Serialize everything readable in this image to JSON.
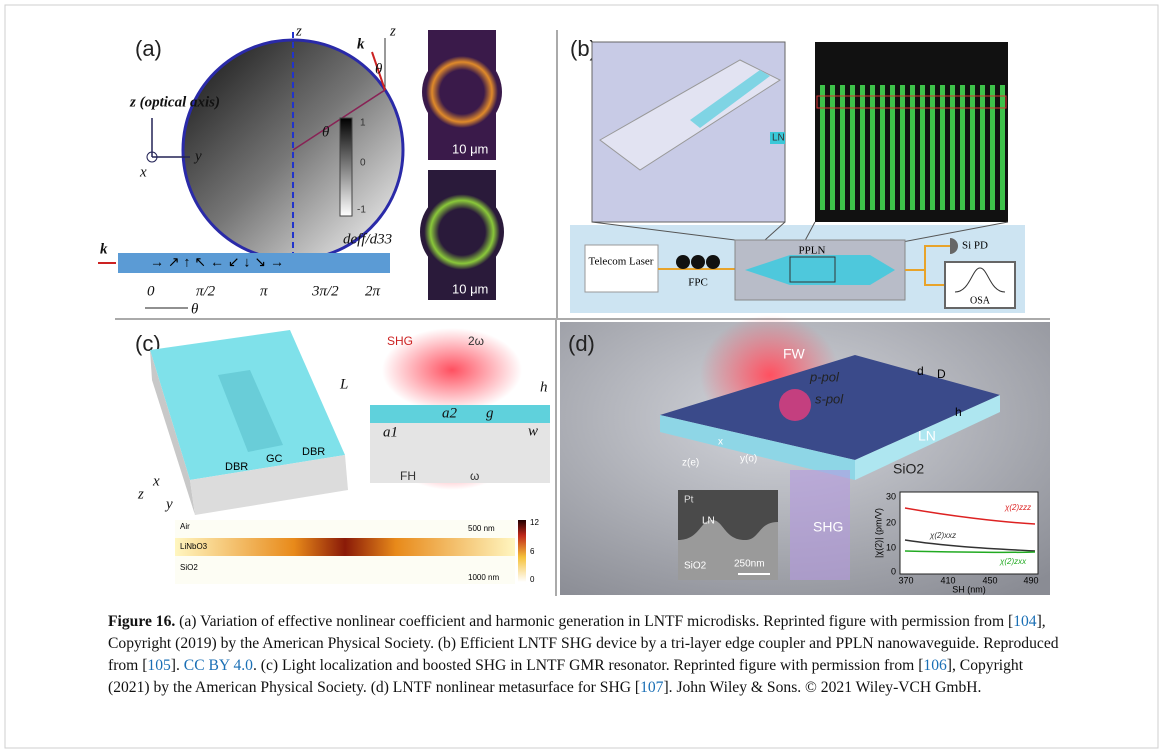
{
  "figure": {
    "panel_a": {
      "label": "(a)",
      "z1": "z",
      "z2": "z",
      "k_top": "k",
      "theta_top": "θ",
      "theta_mid": "θ",
      "axis_z": "z (optical axis)",
      "axis_y": "y",
      "axis_x": "x",
      "cb_max": "1",
      "cb_mid": "0",
      "cb_min": "-1",
      "cb_label": "deff/d33",
      "scale1": "10 μm",
      "scale2": "10 μm",
      "k_bar": "k",
      "phase": [
        "0",
        "π/2",
        "π",
        "3π/2",
        "2π"
      ],
      "theta_axis": "θ"
    },
    "panel_b": {
      "label": "(b)",
      "laser": "Telecom Laser",
      "fpc": "FPC",
      "ppln": "PPLN",
      "pd": "Si PD",
      "osa": "OSA",
      "layer": "LN"
    },
    "panel_c": {
      "label": "(c)",
      "dbr1": "DBR",
      "gc": "GC",
      "dbr2": "DBR",
      "l": "L",
      "ax_z": "z",
      "ax_x": "x",
      "ax_y": "y",
      "shg": "SHG",
      "two_omega": "2ω",
      "h": "h",
      "a1": "a1",
      "a2": "a2",
      "g": "g",
      "w": "w",
      "fh": "FH",
      "omega": "ω",
      "air": "Air",
      "scale_500": "500 nm",
      "linbo3": "LiNbO3",
      "sio2": "SiO2",
      "scale_1000": "1000 nm",
      "cb_max": "12",
      "cb_mid": "6",
      "cb_min": "0"
    },
    "panel_d": {
      "label": "(d)",
      "fw": "FW",
      "ppol": "p-pol",
      "spol": "s-pol",
      "d": "d",
      "D": "D",
      "h": "h",
      "ln": "LN",
      "sio2": "SiO2",
      "x": "x",
      "z": "z(e)",
      "y": "y(o)",
      "shg": "SHG",
      "pt": "Pt",
      "inset_ln": "LN",
      "inset_sio2": "SiO2",
      "scale": "250nm",
      "plot": {
        "ylabel": "|χ(2)| (pm/V)",
        "xlabel": "SH (nm)",
        "yticks": [
          "0",
          "10",
          "20",
          "30"
        ],
        "xticks": [
          "370",
          "410",
          "450",
          "490"
        ],
        "legend": [
          "χ(2)zzz",
          "χ(2)xxz",
          "χ(2)zxx"
        ]
      }
    },
    "caption": {
      "label": "Figure 16.",
      "segments": [
        {
          "text": " (a) Variation of effective nonlinear coefficient and harmonic generation in LNTF microdisks. Reprinted figure with permission from ["
        },
        {
          "text": "104",
          "link": true
        },
        {
          "text": "], Copyright (2019) by the American Physical Society. (b) Efficient LNTF SHG device by a tri-layer edge coupler and PPLN nanowaveguide. Reproduced from ["
        },
        {
          "text": "105",
          "link": true
        },
        {
          "text": "]. "
        },
        {
          "text": "CC BY 4.0",
          "link": true
        },
        {
          "text": ". (c) Light localization and boosted SHG in LNTF GMR resonator. Reprinted figure with permission from ["
        },
        {
          "text": "106",
          "link": true
        },
        {
          "text": "], Copyright (2021) by the American Physical Society. (d) LNTF nonlinear metasurface for SHG ["
        },
        {
          "text": "107",
          "link": true
        },
        {
          "text": "]. John Wiley & Sons. © 2021 Wiley-VCH GmbH."
        }
      ]
    }
  }
}
